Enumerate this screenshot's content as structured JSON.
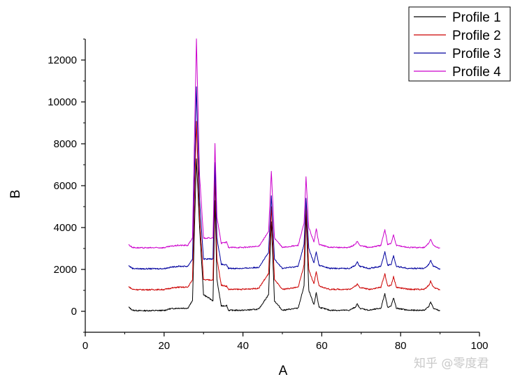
{
  "chart_data": {
    "type": "line",
    "title": "",
    "xlabel": "A",
    "ylabel": "B",
    "xlim": [
      0,
      100
    ],
    "ylim": [
      -1000,
      13000
    ],
    "x_ticks": [
      0,
      20,
      40,
      60,
      80,
      100
    ],
    "y_ticks": [
      0,
      2000,
      4000,
      6000,
      8000,
      10000,
      12000
    ],
    "x_tick_labels": [
      "0",
      "20",
      "40",
      "60",
      "80",
      "100"
    ],
    "y_tick_labels": [
      "0",
      "2000",
      "4000",
      "6000",
      "8000",
      "10000",
      "12000"
    ],
    "grid": false,
    "legend_position": "top-right",
    "x_range": [
      11,
      90
    ],
    "series": [
      {
        "name": "Profile 1",
        "color": "#000000",
        "baseline": 0,
        "points": [
          [
            11,
            200
          ],
          [
            12,
            50
          ],
          [
            14,
            30
          ],
          [
            20,
            40
          ],
          [
            21.5,
            120
          ],
          [
            23.5,
            150
          ],
          [
            26,
            150
          ],
          [
            27.2,
            500
          ],
          [
            28.2,
            7300
          ],
          [
            29,
            4000
          ],
          [
            30,
            800
          ],
          [
            32.4,
            500
          ],
          [
            32.9,
            5300
          ],
          [
            33.4,
            1500
          ],
          [
            34.5,
            250
          ],
          [
            35.9,
            280
          ],
          [
            36.3,
            50
          ],
          [
            40,
            50
          ],
          [
            44,
            100
          ],
          [
            46.5,
            800
          ],
          [
            47.2,
            4300
          ],
          [
            48,
            500
          ],
          [
            50,
            50
          ],
          [
            54,
            150
          ],
          [
            55.5,
            1200
          ],
          [
            56,
            4700
          ],
          [
            56.7,
            1000
          ],
          [
            58,
            300
          ],
          [
            58.6,
            900
          ],
          [
            59.3,
            200
          ],
          [
            62,
            50
          ],
          [
            67,
            50
          ],
          [
            68.5,
            200
          ],
          [
            69,
            350
          ],
          [
            69.6,
            150
          ],
          [
            72,
            50
          ],
          [
            75,
            150
          ],
          [
            76,
            850
          ],
          [
            76.7,
            200
          ],
          [
            77.6,
            250
          ],
          [
            78.2,
            650
          ],
          [
            78.9,
            150
          ],
          [
            82,
            50
          ],
          [
            86,
            50
          ],
          [
            87.2,
            250
          ],
          [
            87.6,
            450
          ],
          [
            88.3,
            150
          ],
          [
            90,
            20
          ]
        ]
      },
      {
        "name": "Profile 2",
        "color": "#cc0000",
        "baseline": 1000,
        "points": [
          [
            11,
            1180
          ],
          [
            12,
            1050
          ],
          [
            14,
            1030
          ],
          [
            20,
            1040
          ],
          [
            21.5,
            1100
          ],
          [
            23.5,
            1150
          ],
          [
            26,
            1150
          ],
          [
            27.2,
            1500
          ],
          [
            28.2,
            9100
          ],
          [
            29,
            4500
          ],
          [
            30,
            1500
          ],
          [
            32.4,
            1500
          ],
          [
            32.9,
            6400
          ],
          [
            33.4,
            2500
          ],
          [
            34.5,
            1250
          ],
          [
            35.9,
            1200
          ],
          [
            36.3,
            1050
          ],
          [
            40,
            1050
          ],
          [
            44,
            1100
          ],
          [
            46.5,
            1800
          ],
          [
            47.2,
            5000
          ],
          [
            48,
            1500
          ],
          [
            50,
            1050
          ],
          [
            54,
            1150
          ],
          [
            55.5,
            2200
          ],
          [
            56,
            5200
          ],
          [
            56.7,
            2000
          ],
          [
            58,
            1300
          ],
          [
            58.6,
            1900
          ],
          [
            59.3,
            1200
          ],
          [
            62,
            1050
          ],
          [
            67,
            1050
          ],
          [
            68.5,
            1200
          ],
          [
            69,
            1300
          ],
          [
            69.6,
            1150
          ],
          [
            72,
            1050
          ],
          [
            75,
            1150
          ],
          [
            76,
            1800
          ],
          [
            76.7,
            1200
          ],
          [
            77.6,
            1250
          ],
          [
            78.2,
            1650
          ],
          [
            78.9,
            1150
          ],
          [
            82,
            1050
          ],
          [
            86,
            1050
          ],
          [
            87.2,
            1250
          ],
          [
            87.6,
            1450
          ],
          [
            88.3,
            1150
          ],
          [
            90,
            1020
          ]
        ]
      },
      {
        "name": "Profile 3",
        "color": "#00009e",
        "baseline": 2000,
        "points": [
          [
            11,
            2180
          ],
          [
            12,
            2050
          ],
          [
            14,
            2030
          ],
          [
            20,
            2040
          ],
          [
            21.5,
            2100
          ],
          [
            23.5,
            2150
          ],
          [
            26,
            2150
          ],
          [
            27.2,
            2500
          ],
          [
            28.2,
            10700
          ],
          [
            29,
            5300
          ],
          [
            30,
            2500
          ],
          [
            32.4,
            2500
          ],
          [
            32.9,
            7100
          ],
          [
            33.4,
            3500
          ],
          [
            34.5,
            2250
          ],
          [
            35.9,
            2200
          ],
          [
            36.3,
            2050
          ],
          [
            40,
            2050
          ],
          [
            44,
            2100
          ],
          [
            46.5,
            2800
          ],
          [
            47.2,
            5500
          ],
          [
            48,
            2500
          ],
          [
            50,
            2050
          ],
          [
            54,
            2150
          ],
          [
            55.5,
            3200
          ],
          [
            56,
            5400
          ],
          [
            56.7,
            3000
          ],
          [
            58,
            2300
          ],
          [
            58.6,
            2850
          ],
          [
            59.3,
            2200
          ],
          [
            62,
            2050
          ],
          [
            67,
            2050
          ],
          [
            68.5,
            2200
          ],
          [
            69,
            2350
          ],
          [
            69.6,
            2150
          ],
          [
            72,
            2050
          ],
          [
            75,
            2150
          ],
          [
            76,
            2850
          ],
          [
            76.7,
            2200
          ],
          [
            77.6,
            2250
          ],
          [
            78.2,
            2650
          ],
          [
            78.9,
            2150
          ],
          [
            82,
            2050
          ],
          [
            86,
            2050
          ],
          [
            87.2,
            2250
          ],
          [
            87.6,
            2450
          ],
          [
            88.3,
            2150
          ],
          [
            90,
            2020
          ]
        ]
      },
      {
        "name": "Profile 4",
        "color": "#cc00cc",
        "baseline": 3000,
        "points": [
          [
            11,
            3180
          ],
          [
            12,
            3050
          ],
          [
            14,
            3030
          ],
          [
            20,
            3040
          ],
          [
            21.5,
            3100
          ],
          [
            23.5,
            3150
          ],
          [
            26,
            3150
          ],
          [
            27.2,
            3500
          ],
          [
            28.2,
            13000
          ],
          [
            29,
            6500
          ],
          [
            30,
            3500
          ],
          [
            32.4,
            3500
          ],
          [
            32.9,
            8000
          ],
          [
            33.4,
            4500
          ],
          [
            34.5,
            3250
          ],
          [
            35.9,
            3300
          ],
          [
            36.3,
            3050
          ],
          [
            40,
            3050
          ],
          [
            44,
            3100
          ],
          [
            46.5,
            3800
          ],
          [
            47.2,
            6700
          ],
          [
            48,
            3500
          ],
          [
            50,
            3050
          ],
          [
            54,
            3150
          ],
          [
            55.5,
            4200
          ],
          [
            56,
            6400
          ],
          [
            56.7,
            4000
          ],
          [
            58,
            3300
          ],
          [
            58.6,
            3950
          ],
          [
            59.3,
            3200
          ],
          [
            62,
            3050
          ],
          [
            67,
            3050
          ],
          [
            68.5,
            3200
          ],
          [
            69,
            3350
          ],
          [
            69.6,
            3150
          ],
          [
            72,
            3050
          ],
          [
            75,
            3150
          ],
          [
            76,
            3900
          ],
          [
            76.7,
            3200
          ],
          [
            77.6,
            3250
          ],
          [
            78.2,
            3650
          ],
          [
            78.9,
            3150
          ],
          [
            82,
            3050
          ],
          [
            86,
            3050
          ],
          [
            87.2,
            3250
          ],
          [
            87.6,
            3450
          ],
          [
            88.3,
            3150
          ],
          [
            90,
            3000
          ]
        ]
      }
    ]
  },
  "watermark": "知乎 @零度君"
}
